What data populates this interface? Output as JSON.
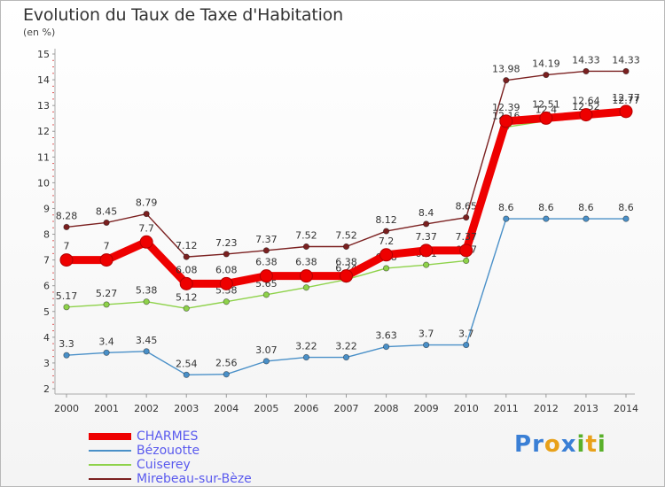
{
  "header": {
    "title": "Evolution du Taux de Taxe d'Habitation",
    "subtitle": "(en %)"
  },
  "logo": {
    "text": "Proxiti",
    "letters": [
      "P",
      "r",
      "o",
      "x",
      "i",
      "t",
      "i"
    ],
    "colors": [
      "#3a7fd5",
      "#3a7fd5",
      "#e8a11a",
      "#3a7fd5",
      "#59b02a",
      "#e8a11a",
      "#59b02a"
    ]
  },
  "chart_data": {
    "type": "line",
    "title": "Evolution du Taux de Taxe d'Habitation",
    "subtitle": "(en %)",
    "xlabel": "",
    "ylabel": "",
    "x": [
      "2000",
      "2001",
      "2002",
      "2003",
      "2004",
      "2005",
      "2006",
      "2007",
      "2008",
      "2009",
      "2010",
      "2011",
      "2012",
      "2013",
      "2014"
    ],
    "ylim": [
      2,
      15
    ],
    "yticks": [
      "2",
      "3",
      "4",
      "5",
      "6",
      "7",
      "8",
      "9",
      "10",
      "11",
      "12",
      "13",
      "14",
      "15"
    ],
    "grid": false,
    "legend_position": "bottom-left",
    "series": [
      {
        "name": "Mirebeau-sur-Bèze",
        "color": "#7b2020",
        "emphasis": false,
        "values": [
          8.28,
          8.45,
          8.79,
          7.12,
          7.23,
          7.37,
          7.52,
          7.52,
          8.12,
          8.4,
          8.65,
          13.98,
          14.19,
          14.33,
          14.33
        ],
        "labels": [
          "8.28",
          "8.45",
          "8.79",
          "7.12",
          "7.23",
          "7.37",
          "7.52",
          "7.52",
          "8.12",
          "8.4",
          "8.65",
          "13.98",
          "14.19",
          "14.33",
          "14.33"
        ]
      },
      {
        "name": "Bézouotte",
        "color": "#4a90c8",
        "emphasis": false,
        "values": [
          3.3,
          3.4,
          3.45,
          2.54,
          2.56,
          3.07,
          3.22,
          3.22,
          3.63,
          3.7,
          3.7,
          8.6,
          8.6,
          8.6,
          8.6
        ],
        "labels": [
          "3.3",
          "3.4",
          "3.45",
          "2.54",
          "2.56",
          "3.07",
          "3.22",
          "3.22",
          "3.63",
          "3.7",
          "3.7",
          "8.6",
          "8.6",
          "8.6",
          "8.6"
        ]
      },
      {
        "name": "Cuiserey",
        "color": "#8ed24a",
        "emphasis": false,
        "values": [
          5.17,
          5.27,
          5.38,
          5.12,
          5.38,
          5.65,
          5.93,
          6.24,
          6.68,
          6.81,
          6.97,
          12.16,
          12.4,
          12.52,
          12.77
        ],
        "labels": [
          "5.17",
          "5.27",
          "5.38",
          "5.12",
          "5.38",
          "5.65",
          "5.93",
          "6.24",
          "6.68",
          "6.81",
          "6.97",
          "12.16",
          "12.4",
          "12.52",
          "12.77"
        ]
      },
      {
        "name": "CHARMES",
        "color": "#ee0000",
        "emphasis": true,
        "values": [
          7,
          7,
          7.7,
          6.08,
          6.08,
          6.38,
          6.38,
          6.38,
          7.2,
          7.37,
          7.37,
          12.39,
          12.51,
          12.64,
          12.77
        ],
        "labels": [
          "7",
          "7",
          "7.7",
          "6.08",
          "6.08",
          "6.38",
          "6.38",
          "6.38",
          "7.2",
          "7.37",
          "7.37",
          "12.39",
          "12.51",
          "12.64",
          "12.77"
        ]
      }
    ],
    "legend": [
      {
        "name": "CHARMES",
        "color": "#ee0000",
        "text_color": "#5a5aee",
        "emphasis": true
      },
      {
        "name": "Bézouotte",
        "color": "#4a90c8",
        "text_color": "#5a5aee",
        "emphasis": false
      },
      {
        "name": "Cuiserey",
        "color": "#8ed24a",
        "text_color": "#5a5aee",
        "emphasis": false
      },
      {
        "name": "Mirebeau-sur-Bèze",
        "color": "#7b2020",
        "text_color": "#5a5aee",
        "emphasis": false
      }
    ]
  }
}
